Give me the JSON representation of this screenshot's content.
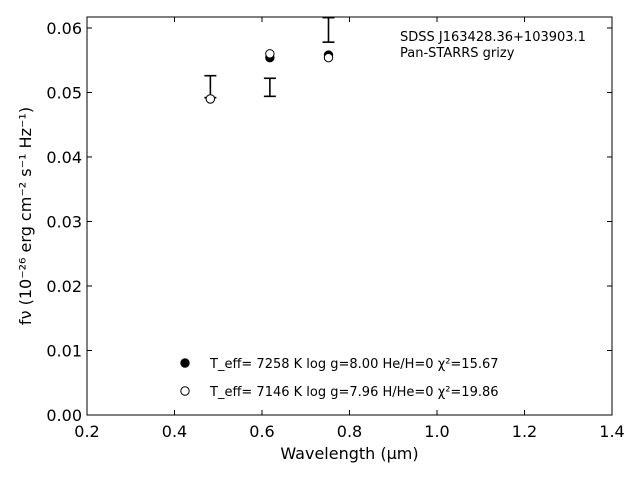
{
  "chart_data": {
    "type": "scatter",
    "title": "",
    "xlabel": "Wavelength (μm)",
    "ylabel": "fν (10⁻²⁶ erg cm⁻² s⁻¹ Hz⁻¹)",
    "xlim": [
      0.2,
      1.4
    ],
    "ylim": [
      0.0,
      0.0617
    ],
    "xticks": [
      "0.2",
      "0.4",
      "0.6",
      "0.8",
      "1.0",
      "1.2",
      "1.4"
    ],
    "yticks": [
      "0.00",
      "0.01",
      "0.02",
      "0.03",
      "0.04",
      "0.05",
      "0.06"
    ],
    "annotation": [
      "SDSS J163428.36+103903.1",
      "Pan-STARRS grizy"
    ],
    "observed": {
      "x": [
        0.482,
        0.618,
        0.752
      ],
      "y": [
        0.0509,
        0.0508,
        0.0597
      ],
      "yerr": [
        0.0017,
        0.0014,
        0.0019
      ]
    },
    "series": [
      {
        "marker": "filled",
        "label": "T_eff=  7258 K  log g=8.00  He/H=0  χ²=15.67",
        "x": [
          0.482,
          0.618,
          0.752
        ],
        "y": [
          0.049,
          0.0554,
          0.0558
        ]
      },
      {
        "marker": "open",
        "label": "T_eff=  7146 K  log g=7.96  H/He=0  χ²=19.86",
        "x": [
          0.482,
          0.618,
          0.752
        ],
        "y": [
          0.049,
          0.056,
          0.0554
        ]
      }
    ],
    "legend_position": "lower-center",
    "grid": false
  }
}
